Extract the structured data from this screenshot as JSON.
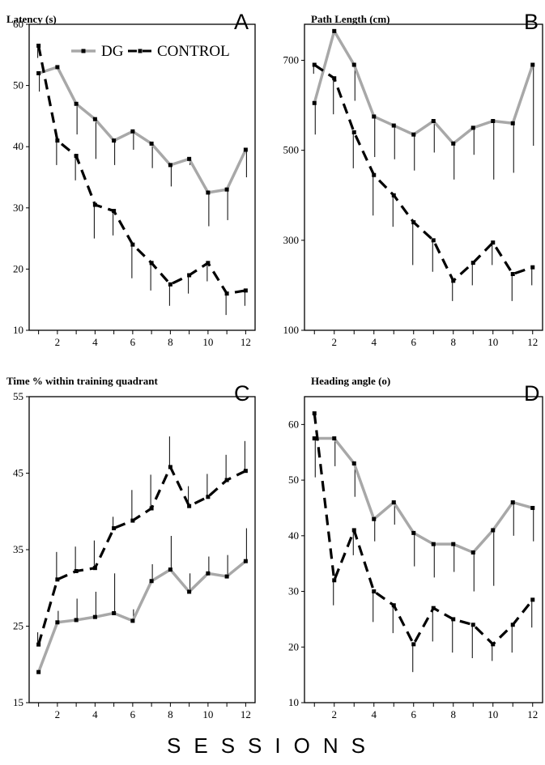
{
  "xlabel": "SESSIONS",
  "colors": {
    "dg": "#a8a8a8",
    "control": "#000000",
    "axis": "#000000"
  },
  "chart_data": [
    {
      "type": "line",
      "panel": "A",
      "title": "Latency (s)",
      "legend": [
        "DG",
        "CONTROL"
      ],
      "x": [
        1,
        2,
        3,
        4,
        5,
        6,
        7,
        8,
        9,
        10,
        11,
        12
      ],
      "xticks": [
        2,
        4,
        6,
        8,
        10,
        12
      ],
      "ylim": [
        10,
        60
      ],
      "yticks": [
        10,
        20,
        30,
        40,
        50,
        60
      ],
      "series": [
        {
          "name": "DG",
          "values": [
            52,
            53,
            47,
            44.5,
            41,
            42.5,
            40.5,
            37,
            38,
            32.5,
            33,
            39.5
          ],
          "err": [
            3,
            0,
            5,
            6.5,
            4,
            3,
            4,
            3.5,
            1,
            5.5,
            5,
            4.5
          ]
        },
        {
          "name": "CONTROL",
          "values": [
            56.5,
            41,
            38.5,
            30.5,
            29.5,
            24,
            21,
            17.5,
            19,
            21,
            16,
            16.5
          ],
          "err": [
            2,
            4,
            4,
            5.5,
            4,
            5.5,
            4.5,
            3.5,
            3,
            3,
            3.5,
            2.5
          ]
        }
      ]
    },
    {
      "type": "line",
      "panel": "B",
      "title": "Path Length (cm)",
      "x": [
        1,
        2,
        3,
        4,
        5,
        6,
        7,
        8,
        9,
        10,
        11,
        12
      ],
      "xticks": [
        2,
        4,
        6,
        8,
        10,
        12
      ],
      "ylim": [
        100,
        780
      ],
      "yticks": [
        100,
        300,
        500,
        700
      ],
      "series": [
        {
          "name": "DG",
          "values": [
            605,
            765,
            690,
            575,
            555,
            535,
            565,
            515,
            550,
            565,
            560,
            690
          ],
          "err": [
            70,
            0,
            80,
            90,
            75,
            80,
            70,
            80,
            60,
            130,
            110,
            180
          ]
        },
        {
          "name": "CONTROL",
          "values": [
            690,
            660,
            540,
            445,
            400,
            340,
            300,
            210,
            250,
            295,
            225,
            240
          ],
          "err": [
            20,
            80,
            80,
            90,
            70,
            95,
            70,
            45,
            50,
            50,
            60,
            40
          ]
        }
      ]
    },
    {
      "type": "line",
      "panel": "C",
      "title": "Time % within training quadrant",
      "x": [
        1,
        2,
        3,
        4,
        5,
        6,
        7,
        8,
        9,
        10,
        11,
        12
      ],
      "xticks": [
        2,
        4,
        6,
        8,
        10,
        12
      ],
      "ylim": [
        15,
        55
      ],
      "yticks": [
        15,
        25,
        35,
        45,
        55
      ],
      "series": [
        {
          "name": "DG",
          "values": [
            19,
            25.5,
            25.8,
            26.2,
            26.7,
            25.7,
            30.9,
            32.4,
            29.5,
            31.9,
            31.5,
            33.5
          ],
          "err": [
            0,
            1.5,
            2.8,
            3.3,
            5.2,
            1.5,
            2.2,
            4.4,
            2.4,
            2.2,
            2.8,
            4.3
          ]
        },
        {
          "name": "CONTROL",
          "values": [
            22.6,
            31.1,
            32.2,
            32.6,
            37.8,
            38.8,
            40.4,
            45.8,
            40.7,
            41.9,
            44.1,
            45.3
          ],
          "err": [
            1.6,
            3.6,
            3.2,
            3.6,
            1.5,
            4.0,
            4.4,
            4.0,
            2.6,
            3.0,
            3.3,
            3.9
          ]
        }
      ]
    },
    {
      "type": "line",
      "panel": "D",
      "title": "Heading angle (o)",
      "x": [
        1,
        2,
        3,
        4,
        5,
        6,
        7,
        8,
        9,
        10,
        11,
        12
      ],
      "xticks": [
        2,
        4,
        6,
        8,
        10,
        12
      ],
      "ylim": [
        10,
        65
      ],
      "yticks": [
        10,
        20,
        30,
        40,
        50,
        60
      ],
      "series": [
        {
          "name": "DG",
          "values": [
            57.5,
            57.5,
            53,
            43,
            46,
            40.5,
            38.5,
            38.5,
            37,
            41,
            46,
            45
          ],
          "err": [
            7,
            5,
            6,
            4,
            4,
            6,
            6,
            5,
            7,
            10,
            6,
            6
          ]
        },
        {
          "name": "CONTROL",
          "values": [
            62,
            32,
            41,
            30,
            27.5,
            20.5,
            27,
            25,
            24,
            20.5,
            24,
            28.5
          ],
          "err": [
            0,
            4.5,
            4.5,
            5.5,
            5,
            5,
            6,
            6,
            6,
            3,
            5,
            5
          ]
        }
      ]
    }
  ]
}
